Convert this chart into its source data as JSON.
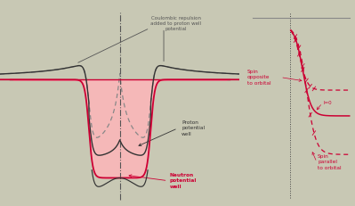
{
  "bg_color": "#c8c8b4",
  "left_bg": "#c8c8b4",
  "right_bg": "#1a1a1a",
  "fill_color": "#f5b8b8",
  "neutron_line_color": "#cc0033",
  "proton_line_color": "#333333",
  "coulomb_line_color": "#888888",
  "horiz_line_color": "#cc0033",
  "center_dash_color": "#555555",
  "neutron_label": "Neutron\npotential\nwell",
  "proton_label": "Proton\npotential\nwell",
  "coulomb_label": "Coulombic repulsion\nadded to proton well\npotential",
  "spin_opposite_label": "Spin\nopposite\nto orbital",
  "spin_parallel_label": "Spin\nparallel\nto orbital",
  "l_label": "l=0",
  "spin_line_color": "#cc0033",
  "text_color_dark": "#333333",
  "text_color_gray": "#555555"
}
